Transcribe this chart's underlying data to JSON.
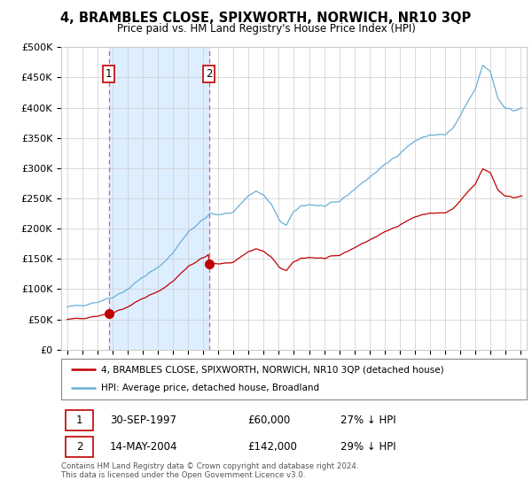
{
  "title": "4, BRAMBLES CLOSE, SPIXWORTH, NORWICH, NR10 3QP",
  "subtitle": "Price paid vs. HM Land Registry's House Price Index (HPI)",
  "ylim": [
    0,
    500000
  ],
  "yticks": [
    0,
    50000,
    100000,
    150000,
    200000,
    250000,
    300000,
    350000,
    400000,
    450000,
    500000
  ],
  "ytick_labels": [
    "£0",
    "£50K",
    "£100K",
    "£150K",
    "£200K",
    "£250K",
    "£300K",
    "£350K",
    "£400K",
    "£450K",
    "£500K"
  ],
  "sale1_date": 1997.75,
  "sale1_price": 60000,
  "sale1_label": "1",
  "sale2_date": 2004.37,
  "sale2_price": 142000,
  "sale2_label": "2",
  "legend_line1": "4, BRAMBLES CLOSE, SPIXWORTH, NORWICH, NR10 3QP (detached house)",
  "legend_line2": "HPI: Average price, detached house, Broadland",
  "table_row1": [
    "1",
    "30-SEP-1997",
    "£60,000",
    "27% ↓ HPI"
  ],
  "table_row2": [
    "2",
    "14-MAY-2004",
    "£142,000",
    "29% ↓ HPI"
  ],
  "footer": "Contains HM Land Registry data © Crown copyright and database right 2024.\nThis data is licensed under the Open Government Licence v3.0.",
  "hpi_color": "#6aaed6",
  "price_color": "#c00000",
  "vline_color": "#e06060",
  "shade_color": "#ddeeff",
  "background_color": "#ffffff",
  "grid_color": "#cccccc",
  "xlim_left": 1994.6,
  "xlim_right": 2025.4
}
